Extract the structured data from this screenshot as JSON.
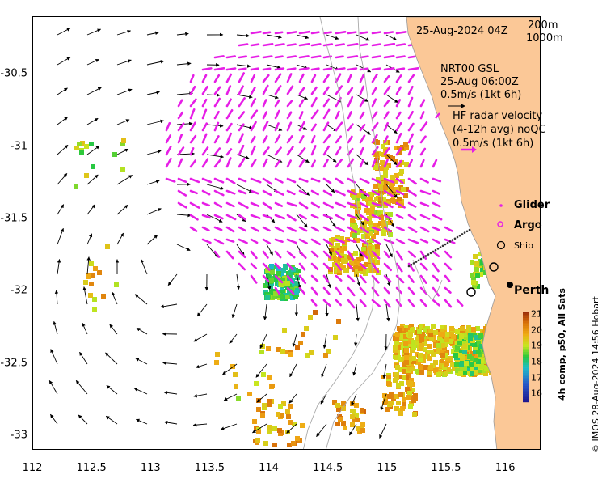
{
  "axes": {
    "x_ticks": [
      "112",
      "112.5",
      "113",
      "113.5",
      "114",
      "114.5",
      "115",
      "115.5",
      "116"
    ],
    "y_ticks": [
      "-30.5",
      "-31",
      "-31.5",
      "-32",
      "-32.5",
      "-33"
    ],
    "x_range": [
      112,
      116.3
    ],
    "y_range": [
      -33.1,
      -30.1
    ]
  },
  "header": {
    "datetime": "25-Aug-2024 04Z",
    "isobath_1": "200m",
    "isobath_2": "1000m"
  },
  "legend": {
    "model_line1": "NRT00 GSL",
    "model_line2": "25-Aug 06:00Z",
    "model_scale": "0.5m/s (1kt 6h)",
    "radar_line1": "HF radar velocity",
    "radar_line2": "(4-12h avg) noQC",
    "radar_scale": "0.5m/s (1kt 6h)",
    "glider": "Glider",
    "argo": "Argo",
    "ship": "Ship"
  },
  "places": {
    "perth": "Perth"
  },
  "colorbar": {
    "title": "4h comp, p50, All Sats",
    "ticks": [
      "21",
      "20",
      "19",
      "18",
      "17",
      "16"
    ],
    "min": 15.5,
    "max": 21.2
  },
  "credit": "© IMOS 28-Aug-2024 14:56 Hobart",
  "colors": {
    "land": "#fbc897",
    "radar_arrow": "#e61ee6",
    "model_arrow": "#000000",
    "isobath": "#a9a9a9"
  }
}
